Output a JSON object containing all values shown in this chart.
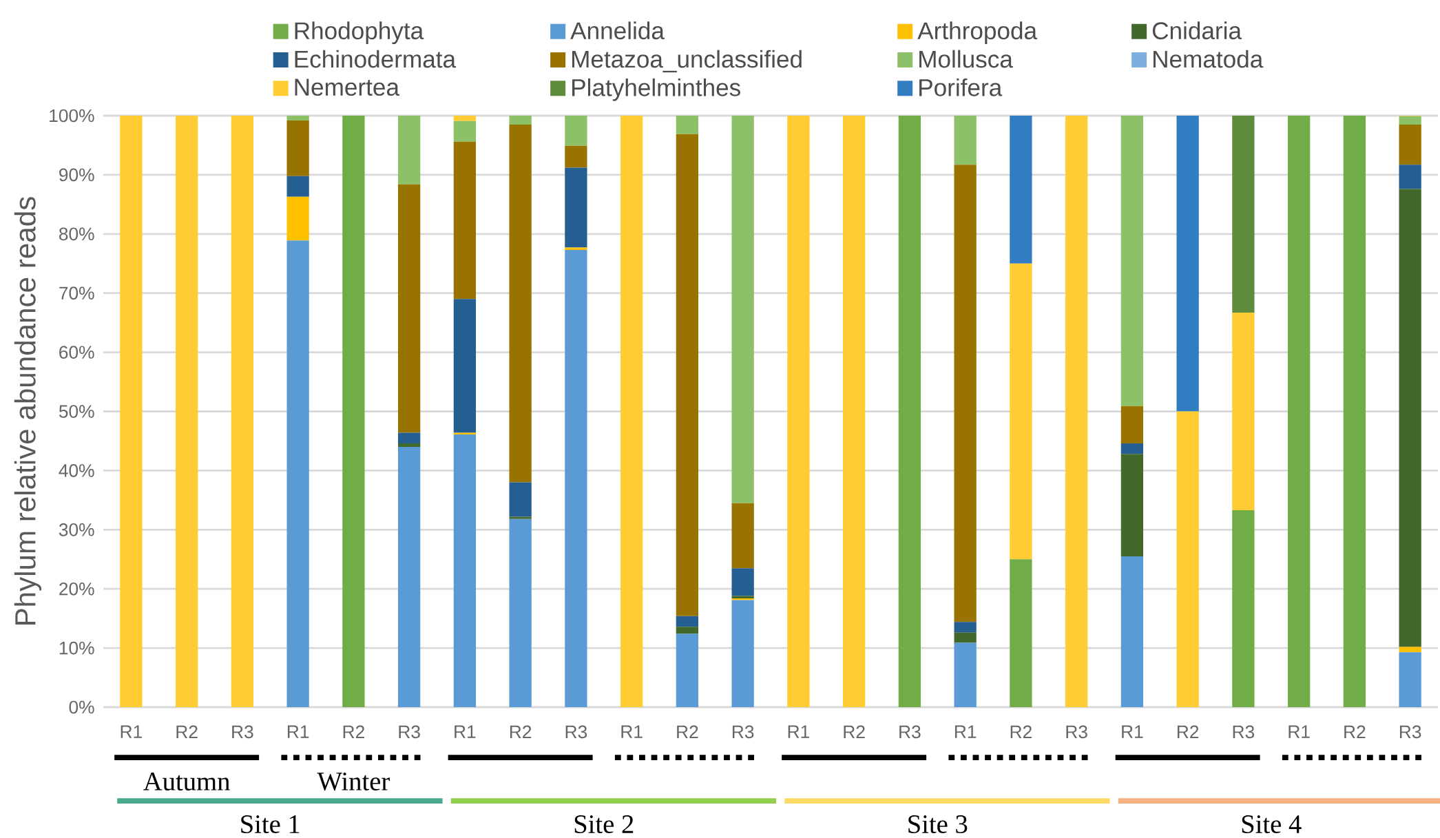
{
  "chart_data": {
    "type": "bar",
    "stacked": true,
    "ylabel": "Phylum relative abundance reads",
    "categories": [
      "R1",
      "R2",
      "R3",
      "R1",
      "R2",
      "R3",
      "R1",
      "R2",
      "R3",
      "R1",
      "R2",
      "R3",
      "R1",
      "R2",
      "R3",
      "R1",
      "R2",
      "R3",
      "R1",
      "R2",
      "R3",
      "R1",
      "R2",
      "R3"
    ],
    "ylim": [
      0,
      100
    ],
    "yticks": [
      {
        "value": 0,
        "label": "0%"
      },
      {
        "value": 10,
        "label": "10%"
      },
      {
        "value": 20,
        "label": "20%"
      },
      {
        "value": 30,
        "label": "30%"
      },
      {
        "value": 40,
        "label": "40%"
      },
      {
        "value": 50,
        "label": "50%"
      },
      {
        "value": 60,
        "label": "60%"
      },
      {
        "value": 70,
        "label": "70%"
      },
      {
        "value": 80,
        "label": "80%"
      },
      {
        "value": 90,
        "label": "90%"
      },
      {
        "value": 100,
        "label": "100%"
      }
    ],
    "grid": "y",
    "legend": "top",
    "series": [
      {
        "name": "Rhodophyta",
        "color": "#70ad47",
        "values": [
          0,
          0,
          0,
          0,
          100,
          0,
          0,
          0,
          0,
          0,
          0,
          0,
          0,
          0,
          100,
          0,
          25,
          0,
          0,
          0,
          33.3,
          100,
          100,
          0
        ]
      },
      {
        "name": "Annelida",
        "color": "#5b9bd5",
        "values": [
          0,
          0,
          0,
          78.9,
          0,
          44.0,
          46.1,
          31.8,
          77.3,
          0,
          12.4,
          18.1,
          0,
          0,
          0,
          10.9,
          0,
          0,
          25.5,
          0,
          0,
          0,
          0,
          9.3
        ]
      },
      {
        "name": "Arthropoda",
        "color": "#ffc000",
        "values": [
          0,
          0,
          0,
          7.4,
          0,
          0,
          0.3,
          0,
          0.4,
          0,
          0,
          0.3,
          0,
          0,
          0,
          0,
          0,
          0,
          0,
          0,
          0,
          0,
          0,
          0.9
        ]
      },
      {
        "name": "Cnidaria",
        "color": "#43682b",
        "values": [
          0,
          0,
          0,
          0,
          0,
          0.6,
          0,
          0.4,
          0,
          0,
          1.2,
          0.4,
          0,
          0,
          0,
          1.7,
          0,
          0,
          17.3,
          0,
          0,
          0,
          0,
          77.4
        ]
      },
      {
        "name": "Echinodermata",
        "color": "#255e91",
        "values": [
          0,
          0,
          0,
          3.5,
          0,
          1.8,
          22.6,
          5.8,
          13.5,
          0,
          1.8,
          4.7,
          0,
          0,
          0,
          1.8,
          0,
          0,
          1.8,
          0,
          0,
          0,
          0,
          4.1
        ]
      },
      {
        "name": "Metazoa_unclassified",
        "color": "#997300",
        "values": [
          0,
          0,
          0,
          9.4,
          0,
          42.0,
          26.6,
          60.5,
          3.7,
          0,
          81.5,
          11.0,
          0,
          0,
          0,
          77.3,
          0,
          0,
          6.3,
          0,
          0,
          0,
          0,
          6.8
        ]
      },
      {
        "name": "Mollusca",
        "color": "#8cc168",
        "values": [
          0,
          0,
          0,
          0.8,
          0,
          11.6,
          3.5,
          1.5,
          5.1,
          0,
          3.1,
          65.5,
          0,
          0,
          0,
          8.3,
          0,
          0,
          49.1,
          0,
          0,
          0,
          0,
          1.4
        ]
      },
      {
        "name": "Nematoda",
        "color": "#7cafdd",
        "values": [
          0,
          0,
          0,
          0,
          0,
          0,
          0,
          0,
          0,
          0,
          0,
          0,
          0,
          0,
          0,
          0,
          0,
          0,
          0,
          0,
          0,
          0,
          0,
          0
        ]
      },
      {
        "name": "Nemertea",
        "color": "#ffcc33",
        "values": [
          100,
          100,
          100,
          0,
          0,
          0,
          0.9,
          0,
          0,
          100,
          0,
          0,
          100,
          100,
          0,
          0,
          50,
          100,
          0,
          50,
          33.4,
          0,
          0,
          0.1
        ]
      },
      {
        "name": "Platyhelminthes",
        "color": "#5e8b3c",
        "values": [
          0,
          0,
          0,
          0,
          0,
          0,
          0,
          0,
          0,
          0,
          0,
          0,
          0,
          0,
          0,
          0,
          0,
          0,
          0,
          0,
          33.3,
          0,
          0,
          0
        ]
      },
      {
        "name": "Porifera",
        "color": "#327dc2",
        "values": [
          0,
          0,
          0,
          0,
          0,
          0,
          0,
          0,
          0,
          0,
          0,
          0,
          0,
          0,
          0,
          0,
          25,
          0,
          0,
          50,
          0,
          0,
          0,
          0
        ]
      }
    ],
    "annotations": [
      "Autumn",
      "Winter",
      "Site 1",
      "Site 2",
      "Site 3",
      "Site 4"
    ]
  }
}
